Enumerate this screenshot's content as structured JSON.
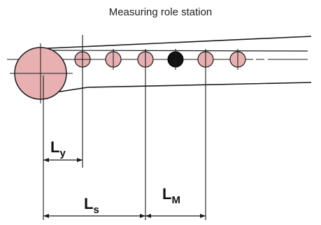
{
  "title": "Measuring role station",
  "labels": {
    "ly_main": "L",
    "ly_sub": "y",
    "ls_main": "L",
    "ls_sub": "s",
    "lm_main": "L",
    "lm_sub": "M"
  },
  "colors": {
    "roller_fill": "#e8b0b0",
    "measuring_roller": "#111111",
    "lines": "#1a1a1a"
  }
}
